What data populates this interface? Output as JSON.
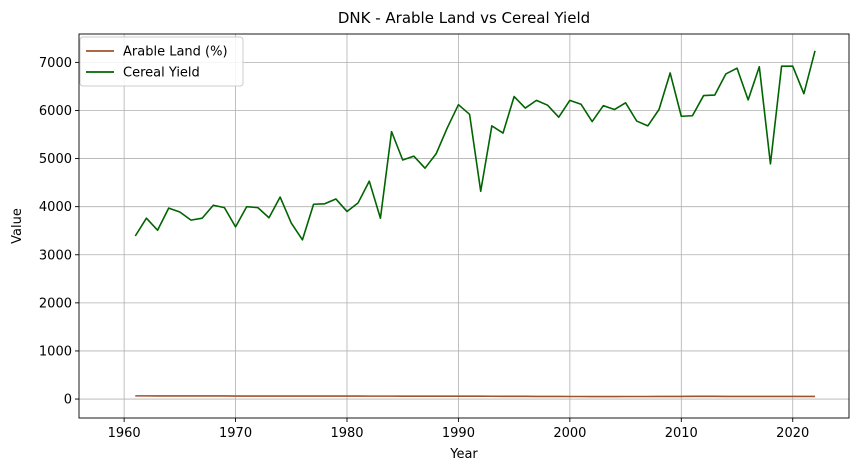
{
  "chart_data": {
    "type": "line",
    "title": "DNK - Arable Land vs Cereal Yield",
    "xlabel": "Year",
    "ylabel": "Value",
    "xlim": [
      1955.95,
      2025.05
    ],
    "ylim": [
      -394,
      7590
    ],
    "xticks": [
      1960,
      1970,
      1980,
      1990,
      2000,
      2010,
      2020
    ],
    "yticks": [
      0,
      1000,
      2000,
      3000,
      4000,
      5000,
      6000,
      7000
    ],
    "grid": true,
    "legend_position": "top-left",
    "x": [
      1961,
      1962,
      1963,
      1964,
      1965,
      1966,
      1967,
      1968,
      1969,
      1970,
      1971,
      1972,
      1973,
      1974,
      1975,
      1976,
      1977,
      1978,
      1979,
      1980,
      1981,
      1982,
      1983,
      1984,
      1985,
      1986,
      1987,
      1988,
      1989,
      1990,
      1991,
      1992,
      1993,
      1994,
      1995,
      1996,
      1997,
      1998,
      1999,
      2000,
      2001,
      2002,
      2003,
      2004,
      2005,
      2006,
      2007,
      2008,
      2009,
      2010,
      2011,
      2012,
      2013,
      2014,
      2015,
      2016,
      2017,
      2018,
      2019,
      2020,
      2021,
      2022
    ],
    "series": [
      {
        "name": "Arable Land (%)",
        "color": "#a0522d",
        "values": [
          66,
          66,
          65,
          65,
          64,
          64,
          64,
          64,
          64,
          63,
          63,
          63,
          62,
          62,
          62,
          62,
          62,
          62,
          62,
          62,
          62,
          61,
          61,
          61,
          60,
          60,
          60,
          60,
          60,
          59,
          59,
          59,
          58,
          57,
          56,
          56,
          55,
          55,
          54,
          53,
          53,
          52,
          52,
          52,
          53,
          53,
          53,
          54,
          55,
          55,
          56,
          56,
          56,
          55,
          55,
          55,
          55,
          55,
          55,
          55,
          55,
          55
        ]
      },
      {
        "name": "Cereal Yield",
        "color": "#006400",
        "values": [
          3390,
          3760,
          3510,
          3970,
          3890,
          3720,
          3760,
          4030,
          3980,
          3580,
          4000,
          3980,
          3770,
          4200,
          3660,
          3310,
          4050,
          4060,
          4160,
          3900,
          4080,
          4530,
          3760,
          5560,
          4970,
          5050,
          4800,
          5100,
          5640,
          6120,
          5920,
          4320,
          5680,
          5530,
          6290,
          6050,
          6210,
          6110,
          5860,
          6210,
          6130,
          5770,
          6100,
          6020,
          6160,
          5780,
          5680,
          6020,
          6780,
          5880,
          5890,
          6310,
          6320,
          6760,
          6880,
          6220,
          6910,
          4890,
          6920,
          6920,
          6350,
          7240
        ]
      }
    ]
  }
}
